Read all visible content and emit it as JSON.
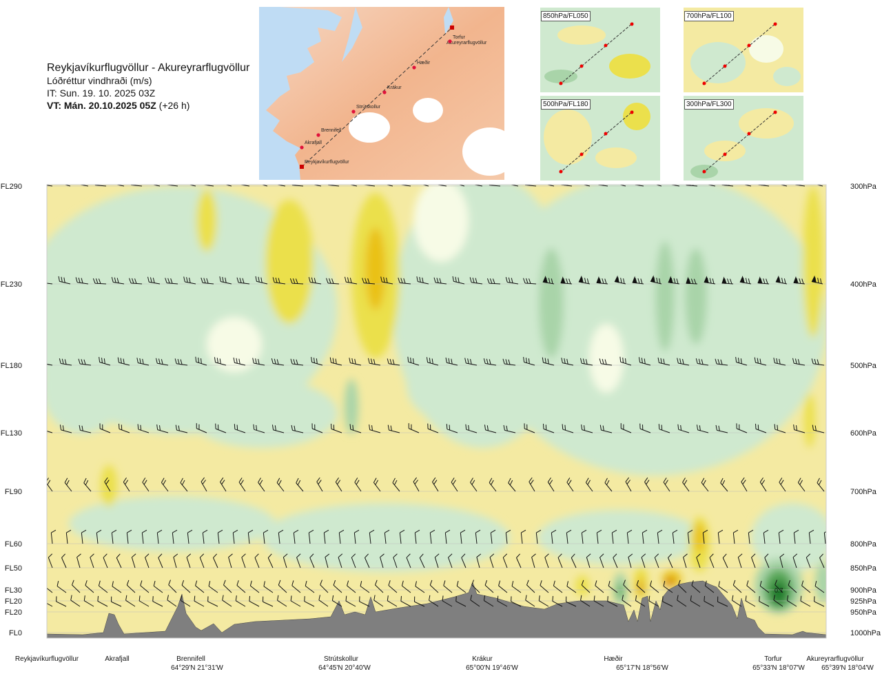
{
  "header": {
    "route": "Reykjavíkurflugvöllur - Akureyrarflugvöllur",
    "parameter": "Lóðréttur vindhraði (m/s)",
    "init_time": "IT: Sun. 19. 10. 2025 03Z",
    "valid_time_bold": "VT: Mán. 20.10.2025 05Z",
    "valid_offset": "(+26 h)"
  },
  "route_map": {
    "waypoints": [
      "Akureyrarflugvöllur",
      "Torfur",
      "Hæðir",
      "Krákur",
      "Strútskollur",
      "Brennifell",
      "Akrafjall",
      "Reykjavíkurflugvöllur"
    ]
  },
  "insets": [
    {
      "label": "850hPa/FL050"
    },
    {
      "label": "700hPa/FL100"
    },
    {
      "label": "500hPa/FL180"
    },
    {
      "label": "300hPa/FL300"
    }
  ],
  "cross_section": {
    "flight_levels": [
      "FL290",
      "FL230",
      "FL180",
      "FL130",
      "FL90",
      "FL60",
      "FL50",
      "FL30",
      "FL20",
      "FL20",
      "FL0"
    ],
    "pressure_levels": [
      "300hPa",
      "400hPa",
      "500hPa",
      "600hPa",
      "700hPa",
      "800hPa",
      "850hPa",
      "900hPa",
      "925hPa",
      "950hPa",
      "1000hPa"
    ],
    "annotation": "0.7",
    "colors": {
      "strong_down": "#1a7a2a",
      "mod_down": "#5aa85a",
      "weak_down": "#a9d4a9",
      "slight_down": "#cfe9cf",
      "neutral": "#f7fbe6",
      "slight_up": "#f4eaa2",
      "weak_up": "#ebe04c",
      "mod_up": "#eac118",
      "strong_up": "#d0781d",
      "terrain": "#7f7f7f"
    }
  },
  "locations": [
    {
      "name": "Reykjavíkurflugvöllur",
      "coord": ""
    },
    {
      "name": "Akrafjall",
      "coord": ""
    },
    {
      "name": "Brennifell",
      "coord": "64°29'N 21°31'W"
    },
    {
      "name": "Strútskollur",
      "coord": "64°45'N 20°40'W"
    },
    {
      "name": "Krákur",
      "coord": "65°00'N 19°46'W"
    },
    {
      "name": "Hæðir",
      "coord": "65°17'N 18°56'W"
    },
    {
      "name": "Torfur",
      "coord": "65°33'N 18°07'W"
    },
    {
      "name": "Akureyrarflugvöllur",
      "coord": "65°39'N 18°04'W"
    }
  ]
}
